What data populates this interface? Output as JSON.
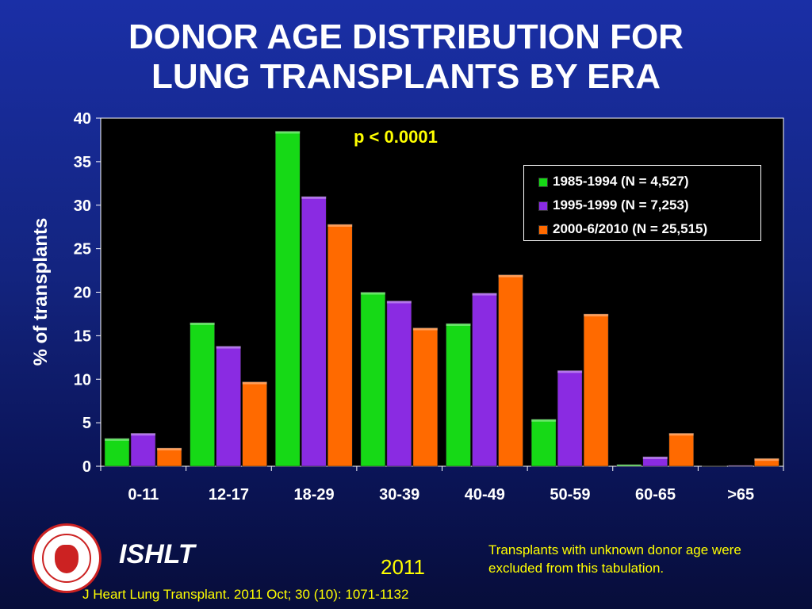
{
  "title": {
    "line1": "DONOR AGE DISTRIBUTION FOR",
    "line2": "LUNG TRANSPLANTS BY ERA"
  },
  "annotation": "p < 0.0001",
  "footer": {
    "brand": "ISHLT",
    "year": "2011",
    "note": "Transplants with unknown donor age were excluded from this tabulation.",
    "citation": "J Heart Lung Transplant. 2011 Oct; 30 (10): 1071-1132",
    "logo_icon": "ishlt-seal-icon"
  },
  "colors": {
    "series_1": "#16d916",
    "series_2": "#8a2be2",
    "series_3": "#ff6a00",
    "plot_bg": "#000000",
    "yellow_text": "#ffff00"
  },
  "chart_data": {
    "type": "bar",
    "ylabel": "% of transplants",
    "xlabel": "",
    "ylim": [
      0,
      40
    ],
    "yticks": [
      0,
      5,
      10,
      15,
      20,
      25,
      30,
      35,
      40
    ],
    "grid": false,
    "legend_position": "top-right",
    "categories": [
      "0-11",
      "12-17",
      "18-29",
      "30-39",
      "40-49",
      "50-59",
      "60-65",
      ">65"
    ],
    "series": [
      {
        "name": "1985-1994 (N = 4,527)",
        "values": [
          3.2,
          16.5,
          38.5,
          20.0,
          16.4,
          5.4,
          0.2,
          0.0
        ]
      },
      {
        "name": "1995-1999 (N = 7,253)",
        "values": [
          3.8,
          13.8,
          31.0,
          19.0,
          19.9,
          11.0,
          1.1,
          0.1
        ]
      },
      {
        "name": "2000-6/2010 (N = 25,515)",
        "values": [
          2.1,
          9.7,
          27.8,
          15.9,
          22.0,
          17.5,
          3.8,
          0.9
        ]
      }
    ]
  }
}
